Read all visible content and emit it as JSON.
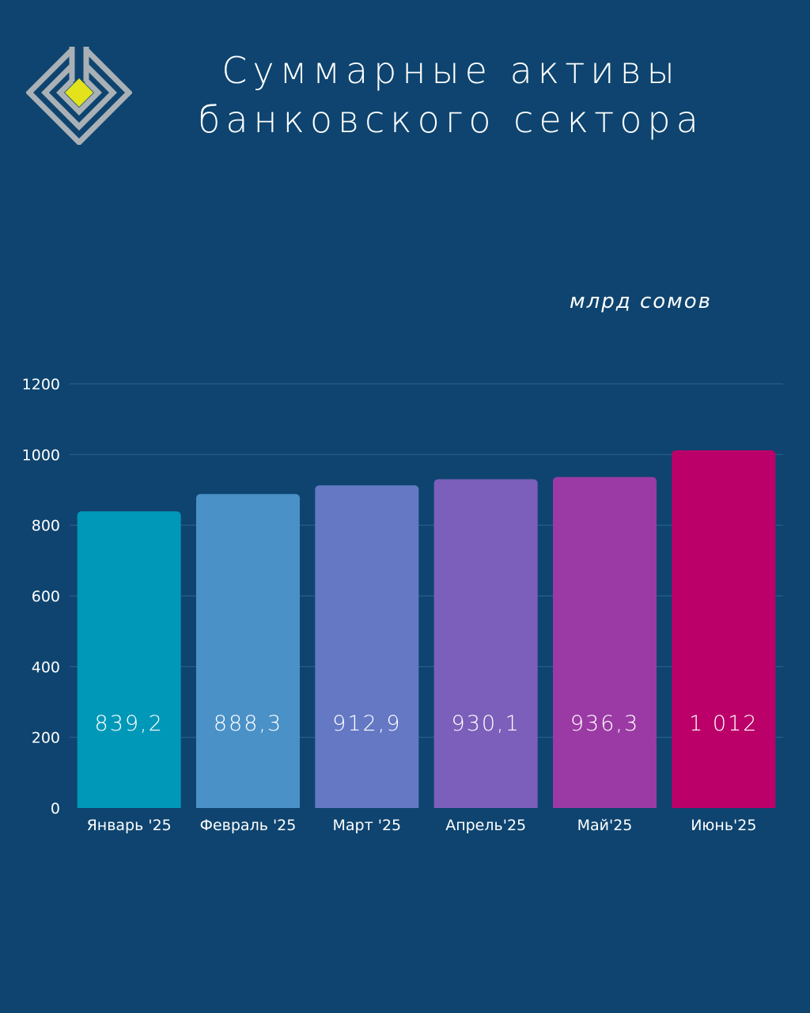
{
  "title_lines": [
    "Суммарные активы",
    "банковского сектора"
  ],
  "chart_data": {
    "type": "bar",
    "unit": "млрд сомов",
    "categories": [
      "Январь '25",
      "Февраль '25",
      "Март '25",
      "Апрель'25",
      "Май'25",
      "Июнь'25"
    ],
    "values": [
      839.2,
      888.3,
      912.9,
      930.1,
      936.3,
      1012
    ],
    "value_labels": [
      "839,2",
      "888,3",
      "912,9",
      "930,1",
      "936,3",
      "1 012"
    ],
    "bar_colors": [
      "#0098b8",
      "#4a91c8",
      "#6478c4",
      "#7c5fba",
      "#9b3aa5",
      "#bb0069"
    ],
    "ylim": [
      0,
      1200
    ],
    "yticks": [
      0,
      200,
      400,
      600,
      800,
      1000,
      1200
    ],
    "grid": true,
    "legend": "none"
  },
  "colors": {
    "background": "#0e446f",
    "logo_outline": "#a9b1b6",
    "logo_center": "#e4e31b"
  }
}
